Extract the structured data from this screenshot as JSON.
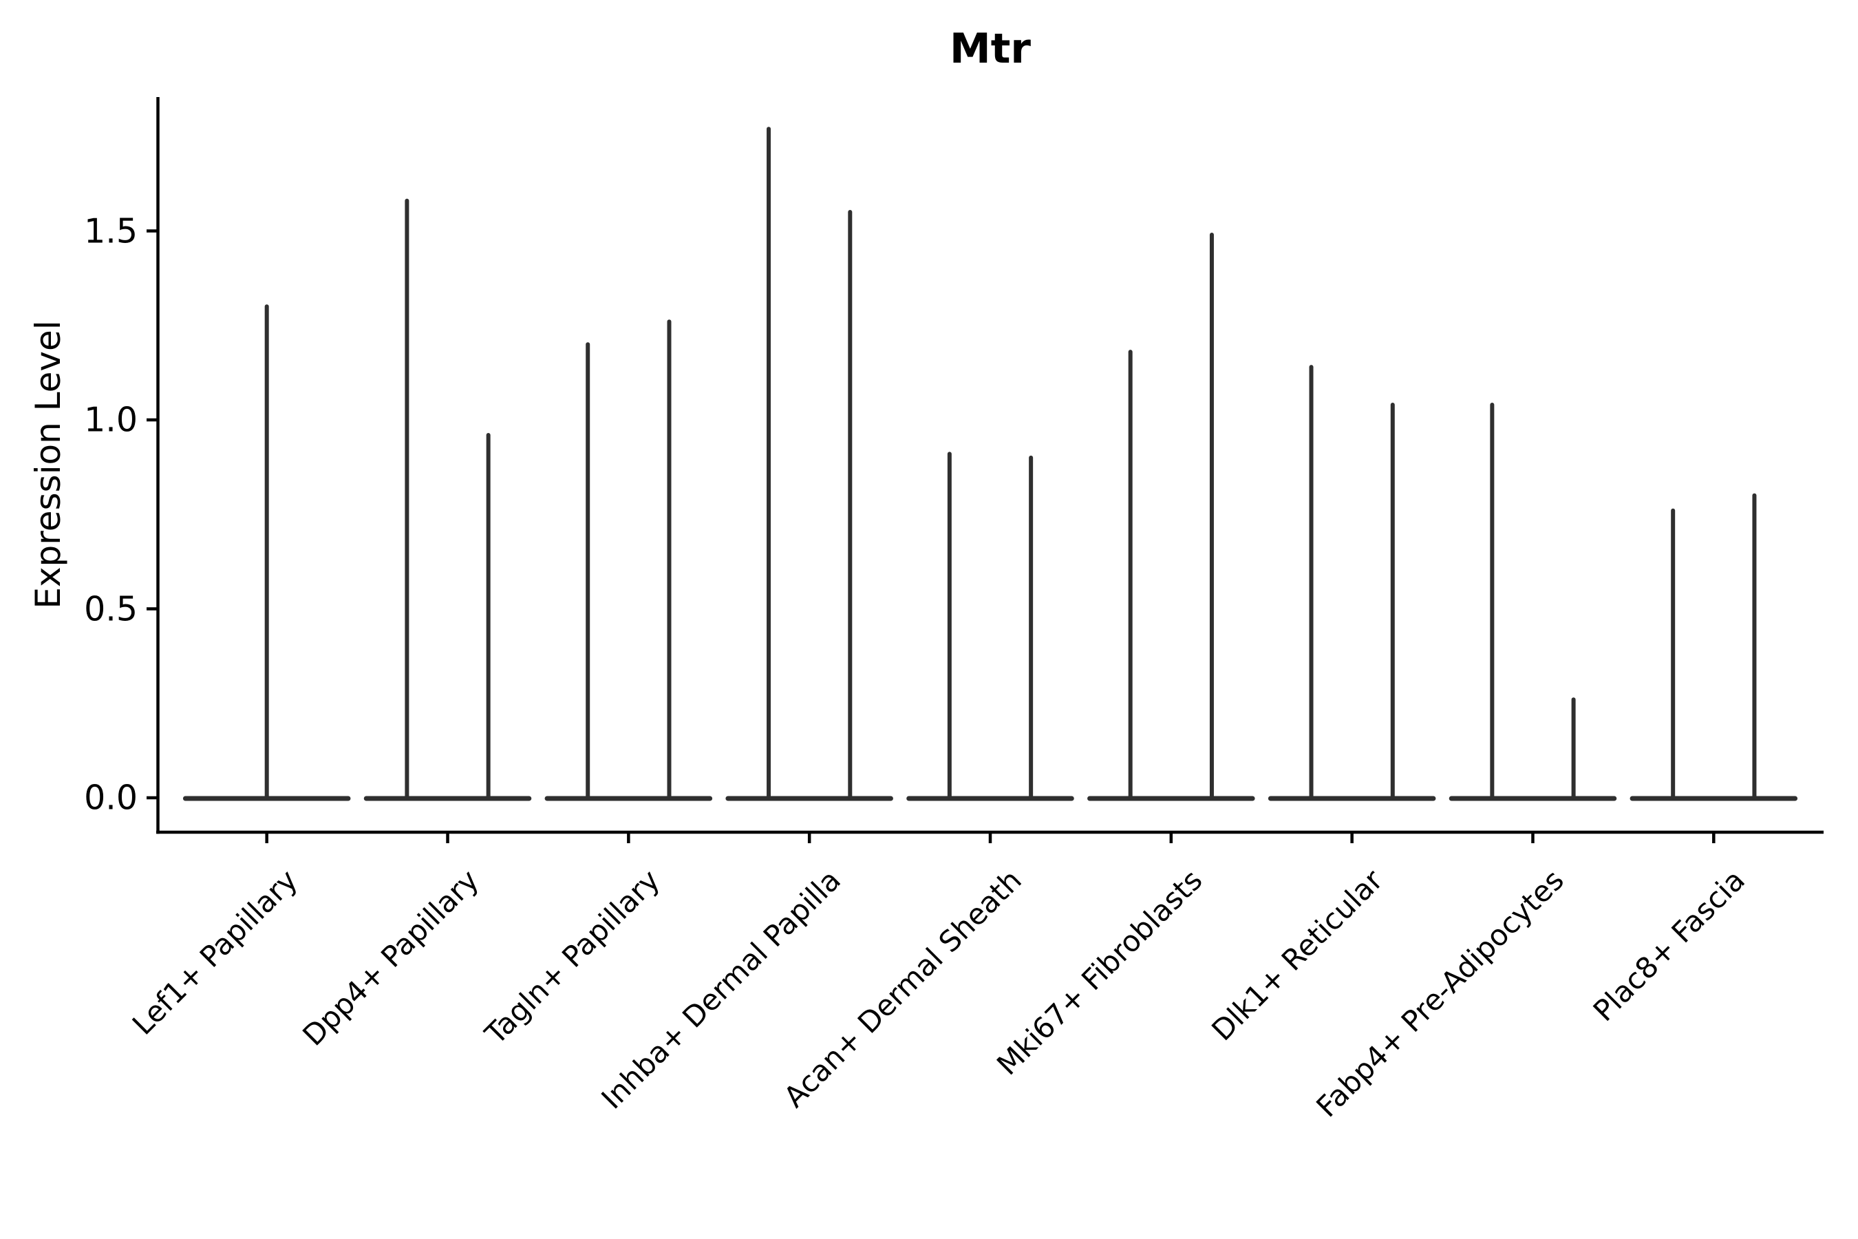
{
  "chart_data": {
    "type": "violin",
    "title": "Mtr",
    "ylabel": "Expression Level",
    "xlabel": "",
    "yticks": [
      "0.0",
      "0.5",
      "1.0",
      "1.5"
    ],
    "ylim": [
      -0.09,
      1.85
    ],
    "x_label_rotation_deg": 45,
    "grid": false,
    "legend": "none",
    "background": "#ffffff",
    "axis_color": "#000000",
    "violin_color": "#2f2f2f",
    "categories": [
      "Lef1+ Papillary",
      "Dpp4+ Papillary",
      "Tagln+ Papillary",
      "Inhba+ Dermal Papilla",
      "Acan+ Dermal Sheath",
      "Mki67+ Fibroblasts",
      "Dlk1+ Reticular",
      "Fabp4+ Pre-Adipocytes",
      "Plac8+ Fascia"
    ],
    "series": [
      {
        "category": "Lef1+ Papillary",
        "violin_maxima": [
          1.3
        ]
      },
      {
        "category": "Dpp4+ Papillary",
        "violin_maxima": [
          1.58,
          0.96
        ]
      },
      {
        "category": "Tagln+ Papillary",
        "violin_maxima": [
          1.2,
          1.26
        ]
      },
      {
        "category": "Inhba+ Dermal Papilla",
        "violin_maxima": [
          1.77,
          1.55
        ]
      },
      {
        "category": "Acan+ Dermal Sheath",
        "violin_maxima": [
          0.91,
          0.9
        ]
      },
      {
        "category": "Mki67+ Fibroblasts",
        "violin_maxima": [
          1.18,
          1.49
        ]
      },
      {
        "category": "Dlk1+ Reticular",
        "violin_maxima": [
          1.14,
          1.04
        ]
      },
      {
        "category": "Fabp4+ Pre-Adipocytes",
        "violin_maxima": [
          1.04,
          0.26
        ]
      },
      {
        "category": "Plac8+ Fascia",
        "violin_maxima": [
          0.76,
          0.8
        ]
      }
    ],
    "description": "Violin plot of Mtr expression; most density is a flat base at 0 with thin spikes up to each violin's maximum."
  }
}
